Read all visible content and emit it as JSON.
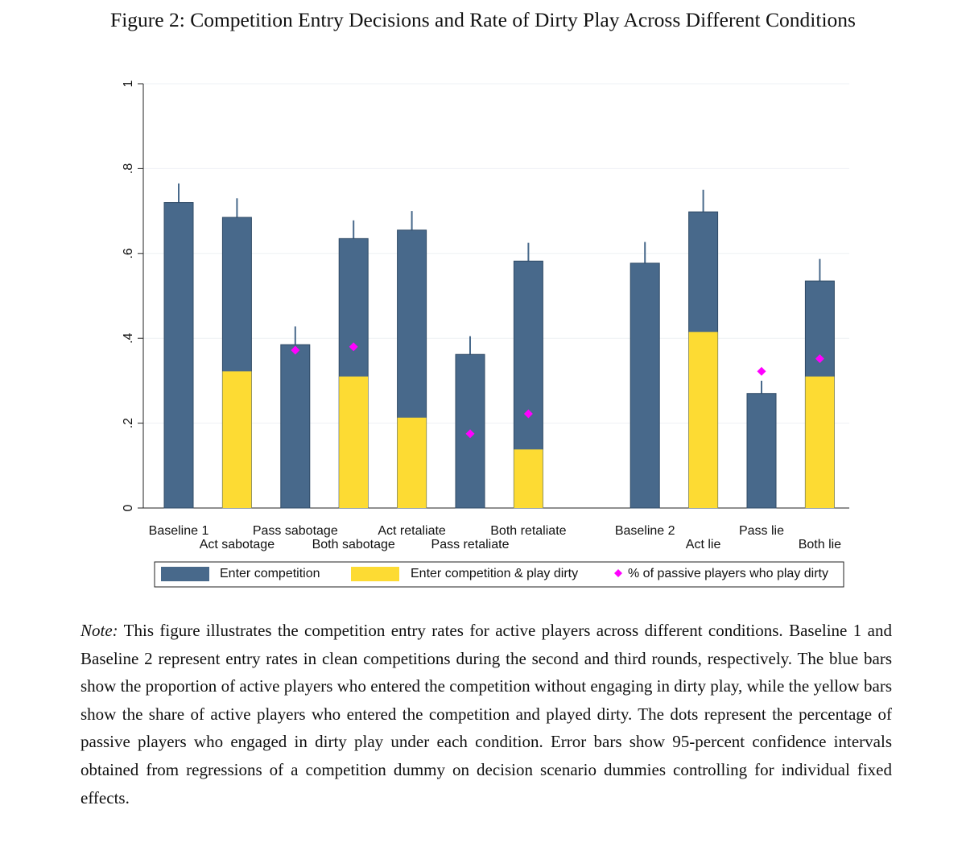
{
  "figure_title": "Figure 2: Competition Entry Decisions and Rate of Dirty Play Across Different Conditions",
  "chart_data": {
    "type": "bar",
    "categories": [
      "Baseline 1",
      "Act sabotage",
      "Pass sabotage",
      "Both sabotage",
      "Act retaliate",
      "Pass retaliate",
      "Both retaliate",
      null,
      "Baseline 2",
      "Act lie",
      "Pass lie",
      "Both lie"
    ],
    "series": [
      {
        "name": "Enter competition",
        "type": "bar",
        "color": "#48698b",
        "values": [
          0.72,
          0.685,
          0.385,
          0.635,
          0.655,
          0.362,
          0.582,
          null,
          0.577,
          0.698,
          0.27,
          0.535
        ],
        "errors": [
          0.045,
          0.045,
          0.043,
          0.043,
          0.045,
          0.043,
          0.043,
          null,
          0.05,
          0.052,
          0.03,
          0.052
        ]
      },
      {
        "name": "Enter competition & play dirty",
        "type": "bar",
        "color": "#fddb33",
        "values": [
          null,
          0.322,
          null,
          0.31,
          0.213,
          null,
          0.138,
          null,
          null,
          0.415,
          null,
          0.31
        ]
      },
      {
        "name": "% of passive players who play dirty",
        "type": "scatter",
        "color": "#ff00ff",
        "values": [
          null,
          null,
          0.372,
          0.38,
          null,
          0.175,
          0.222,
          null,
          null,
          null,
          0.322,
          0.352
        ]
      }
    ],
    "ylim": [
      0,
      1
    ],
    "yticks": [
      0,
      {
        "value": 0.2,
        "label": ".2"
      },
      {
        "value": 0.4,
        "label": ".4"
      },
      {
        "value": 0.6,
        "label": ".6"
      },
      {
        "value": 0.8,
        "label": ".8"
      },
      1
    ],
    "grid": true,
    "legend": "bottom"
  },
  "note": {
    "label": "Note:",
    "text": "This figure illustrates the competition entry rates for active players across different conditions. Baseline 1 and Baseline 2 represent entry rates in clean competitions during the second and third rounds, respectively. The blue bars show the proportion of active players who entered the competition without engaging in dirty play, while the yellow bars show the share of active players who entered the competition and played dirty. The dots represent the percentage of passive players who engaged in dirty play under each condition. Error bars show 95-percent confidence intervals obtained from regressions of a competition dummy on decision scenario dummies controlling for individual fixed effects."
  }
}
